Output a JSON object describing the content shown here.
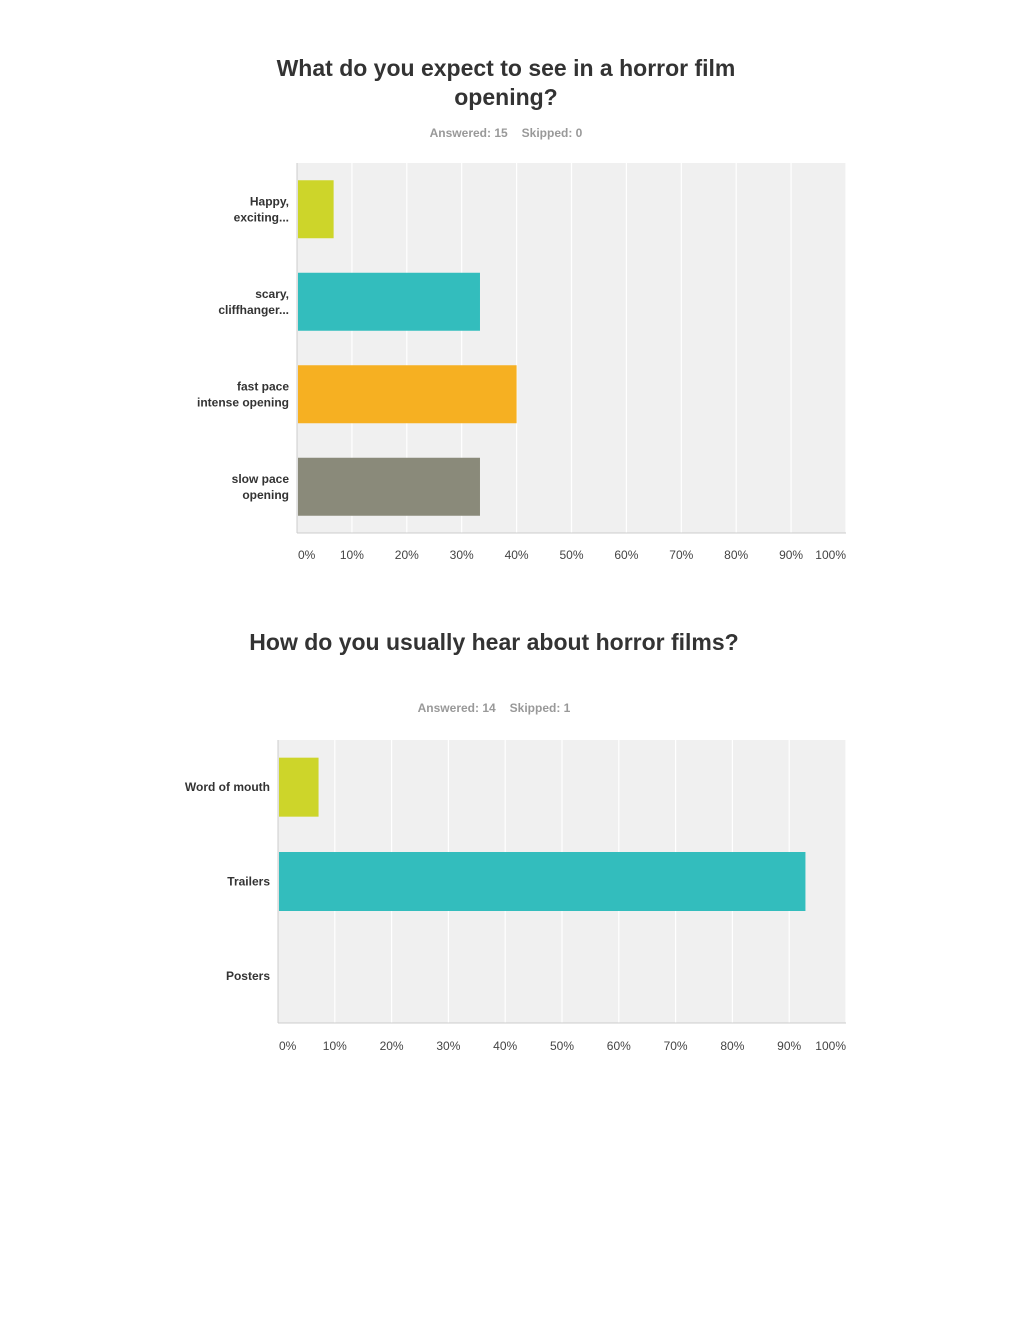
{
  "chart_data": [
    {
      "type": "bar",
      "orientation": "horizontal",
      "title": "What do you expect to see in a horror film opening?",
      "answered": "Answered: 15",
      "skipped": "Skipped: 0",
      "categories": [
        [
          "Happy,",
          "exciting..."
        ],
        [
          "scary,",
          "cliffhanger..."
        ],
        [
          "fast pace",
          "intense opening"
        ],
        [
          "slow pace",
          "opening"
        ]
      ],
      "values": [
        6.67,
        33.33,
        40,
        33.33
      ],
      "colors": [
        "#cdd52a",
        "#33bdbd",
        "#f6b022",
        "#8a8a7a"
      ],
      "xlim": [
        0,
        100
      ],
      "x_ticks": [
        "0%",
        "10%",
        "20%",
        "30%",
        "40%",
        "50%",
        "60%",
        "70%",
        "80%",
        "90%",
        "100%"
      ],
      "grid": true
    },
    {
      "type": "bar",
      "orientation": "horizontal",
      "title": "How do you usually hear about horror films?",
      "answered": "Answered: 14",
      "skipped": "Skipped: 1",
      "categories": [
        [
          "Word of mouth"
        ],
        [
          "Trailers"
        ],
        [
          "Posters"
        ]
      ],
      "values": [
        7.14,
        92.86,
        0
      ],
      "colors": [
        "#cdd52a",
        "#33bdbd",
        "#f6b022"
      ],
      "xlim": [
        0,
        100
      ],
      "x_ticks": [
        "0%",
        "10%",
        "20%",
        "30%",
        "40%",
        "50%",
        "60%",
        "70%",
        "80%",
        "90%",
        "100%"
      ],
      "grid": true
    }
  ]
}
